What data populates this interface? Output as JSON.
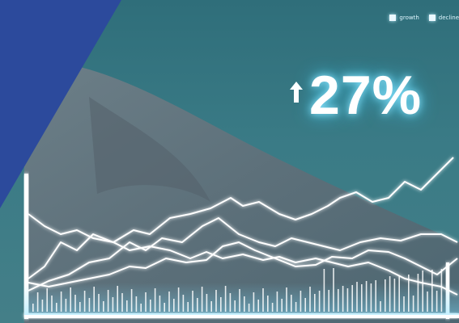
{
  "legend": {
    "items": [
      {
        "label": "growth",
        "color": "#eaf8ff"
      },
      {
        "label": "decline",
        "color": "#eaf8ff"
      }
    ]
  },
  "stat": {
    "icon": "up-arrow-icon",
    "value": "27%",
    "glow_color": "#8fe7ff"
  },
  "colors": {
    "background": "#3a7b86",
    "corner_band": "#2c4a9c",
    "line": "#ffffff",
    "frame_glow": "#bff0ff"
  }
}
